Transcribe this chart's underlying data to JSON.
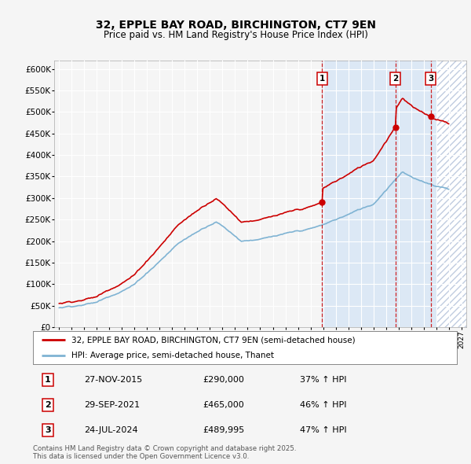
{
  "title": "32, EPPLE BAY ROAD, BIRCHINGTON, CT7 9EN",
  "subtitle": "Price paid vs. HM Land Registry's House Price Index (HPI)",
  "xlim": [
    1994.6,
    2027.4
  ],
  "ylim": [
    0,
    620000
  ],
  "yticks": [
    0,
    50000,
    100000,
    150000,
    200000,
    250000,
    300000,
    350000,
    400000,
    450000,
    500000,
    550000,
    600000
  ],
  "ytick_labels": [
    "£0",
    "£50K",
    "£100K",
    "£150K",
    "£200K",
    "£250K",
    "£300K",
    "£350K",
    "£400K",
    "£450K",
    "£500K",
    "£550K",
    "£600K"
  ],
  "background_color": "#f5f5f5",
  "plot_bg_color": "#f5f5f5",
  "grid_color": "#ffffff",
  "sale_color": "#cc0000",
  "hpi_color": "#7fb3d3",
  "vline_color": "#cc0000",
  "shade_color": "#dce8f5",
  "hatch_color": "#c0cce0",
  "transactions": [
    {
      "label": "1",
      "date": 2015.92,
      "price": 290000,
      "pct": "37% ↑ HPI",
      "date_str": "27-NOV-2015",
      "price_str": "£290,000"
    },
    {
      "label": "2",
      "date": 2021.75,
      "price": 465000,
      "pct": "46% ↑ HPI",
      "date_str": "29-SEP-2021",
      "price_str": "£465,000"
    },
    {
      "label": "3",
      "date": 2024.56,
      "price": 489995,
      "pct": "47% ↑ HPI",
      "date_str": "24-JUL-2024",
      "price_str": "£489,995"
    }
  ],
  "legend_line1": "32, EPPLE BAY ROAD, BIRCHINGTON, CT7 9EN (semi-detached house)",
  "legend_line2": "HPI: Average price, semi-detached house, Thanet",
  "footer": "Contains HM Land Registry data © Crown copyright and database right 2025.\nThis data is licensed under the Open Government Licence v3.0.",
  "hatch_start": 2025.0,
  "hatch_end": 2027.4,
  "shade_start": 2015.92,
  "shade_end": 2025.0
}
